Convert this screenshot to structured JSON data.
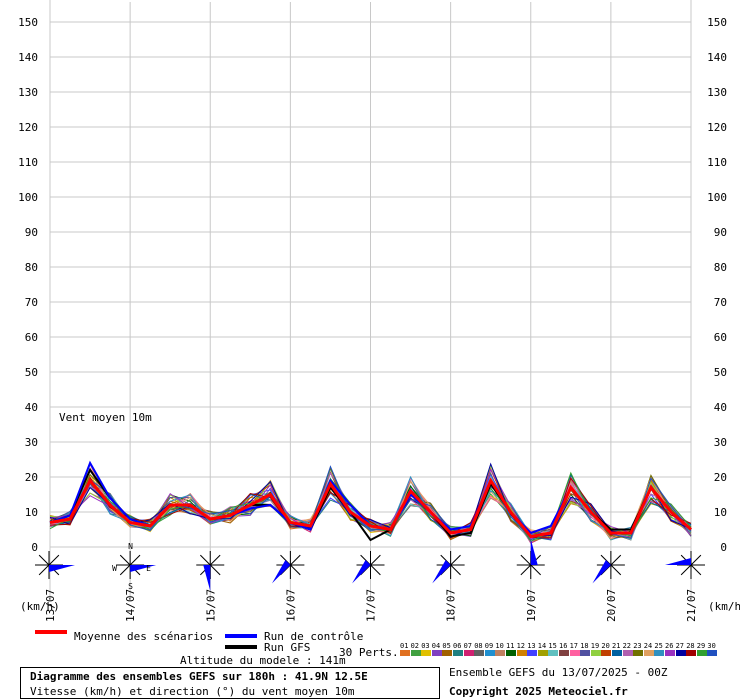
{
  "chart_data": {
    "type": "line",
    "title": "Diagramme des ensembles GEFS sur 180h : 41.9N 12.5E",
    "subtitle": "Vitesse (km/h) et direction (°) du vent moyen 10m",
    "annotation": "Vent moyen 10m",
    "ylabel_left": "(km/h)",
    "ylabel_right": "(km/h)",
    "ylim": [
      0,
      150
    ],
    "yticks": [
      0,
      10,
      20,
      30,
      40,
      50,
      60,
      70,
      80,
      90,
      100,
      110,
      120,
      130,
      140,
      150
    ],
    "x_dates": [
      "13/07",
      "14/07",
      "15/07",
      "16/07",
      "17/07",
      "18/07",
      "19/07",
      "20/07",
      "21/07"
    ],
    "x_hours": [
      0,
      6,
      12,
      18,
      24,
      30,
      36,
      42,
      48,
      54,
      60,
      66,
      72,
      78,
      84,
      90,
      96,
      102,
      108,
      114,
      120,
      126,
      132,
      138,
      144,
      150,
      156,
      162,
      168,
      174,
      180,
      186,
      192
    ],
    "series": [
      {
        "name": "Moyenne des scénarios",
        "color": "#ff0000",
        "values": [
          7,
          8,
          19,
          12,
          7,
          6,
          12,
          12,
          8,
          9,
          12,
          15,
          7,
          6,
          18,
          10,
          6,
          5,
          16,
          10,
          4,
          5,
          19,
          10,
          3,
          4,
          17,
          10,
          4,
          4,
          17,
          10,
          5
        ]
      },
      {
        "name": "Run de contrôle",
        "color": "#0000ff",
        "values": [
          7,
          9,
          24,
          14,
          8,
          6,
          12,
          12,
          8,
          9,
          11,
          12,
          7,
          5,
          19,
          12,
          6,
          5,
          15,
          10,
          5,
          6,
          19,
          10,
          4,
          6,
          17,
          10,
          4,
          4,
          17,
          10,
          5
        ]
      },
      {
        "name": "Run GFS",
        "color": "#000000",
        "values": [
          7,
          9,
          22,
          14,
          8,
          6,
          12,
          12,
          8,
          9,
          12,
          12,
          7,
          5,
          17,
          10,
          2,
          5,
          16,
          10,
          3,
          4,
          18,
          10,
          3,
          4,
          17,
          10,
          5,
          5,
          17,
          10,
          5
        ]
      }
    ],
    "perturbations": {
      "label": "30 Perts.",
      "ids": [
        "01",
        "02",
        "03",
        "04",
        "05",
        "06",
        "07",
        "08",
        "09",
        "10",
        "11",
        "12",
        "13",
        "14",
        "15",
        "16",
        "17",
        "18",
        "19",
        "20",
        "21",
        "22",
        "23",
        "24",
        "25",
        "26",
        "27",
        "28",
        "29",
        "30"
      ],
      "colors": [
        "#e07020",
        "#40a040",
        "#e0c000",
        "#8040c0",
        "#a06000",
        "#208080",
        "#d02070",
        "#606060",
        "#2090d0",
        "#c08060",
        "#006000",
        "#d08000",
        "#4040ff",
        "#a0a000",
        "#60c0c0",
        "#804040",
        "#ff60a0",
        "#5050a0",
        "#90d040",
        "#c04000",
        "#0060a0",
        "#b060b0",
        "#707000",
        "#e0a060",
        "#3090c0",
        "#9a30c0",
        "#0000a0",
        "#a00000",
        "#30a030",
        "#2050c0"
      ]
    },
    "wind_direction_arrows": [
      {
        "date": "13/07",
        "dir": "W"
      },
      {
        "date": "14/07",
        "dir": "W"
      },
      {
        "date": "15/07",
        "dir": "N"
      },
      {
        "date": "16/07",
        "dir": "NE"
      },
      {
        "date": "17/07",
        "dir": "NE"
      },
      {
        "date": "18/07",
        "dir": "NE"
      },
      {
        "date": "19/07",
        "dir": "S"
      },
      {
        "date": "20/07",
        "dir": "NE"
      },
      {
        "date": "21/07",
        "dir": "E"
      }
    ],
    "compass": {
      "n": "N",
      "s": "S",
      "w": "W",
      "e": "E"
    },
    "grid": true
  },
  "legend": {
    "mean": "Moyenne des scénarios",
    "control": "Run de contrôle",
    "gfs": "Run GFS",
    "perts": "30 Perts.",
    "altitude": "Altitude du modele : 141m"
  },
  "footer": {
    "title": "Diagramme des ensembles GEFS sur 180h : 41.9N 12.5E",
    "subtitle": "Vitesse (km/h) et direction (°) du vent moyen 10m",
    "run": "Ensemble GEFS du 13/07/2025 - 00Z",
    "copyright": "Copyright 2025 Meteociel.fr"
  }
}
